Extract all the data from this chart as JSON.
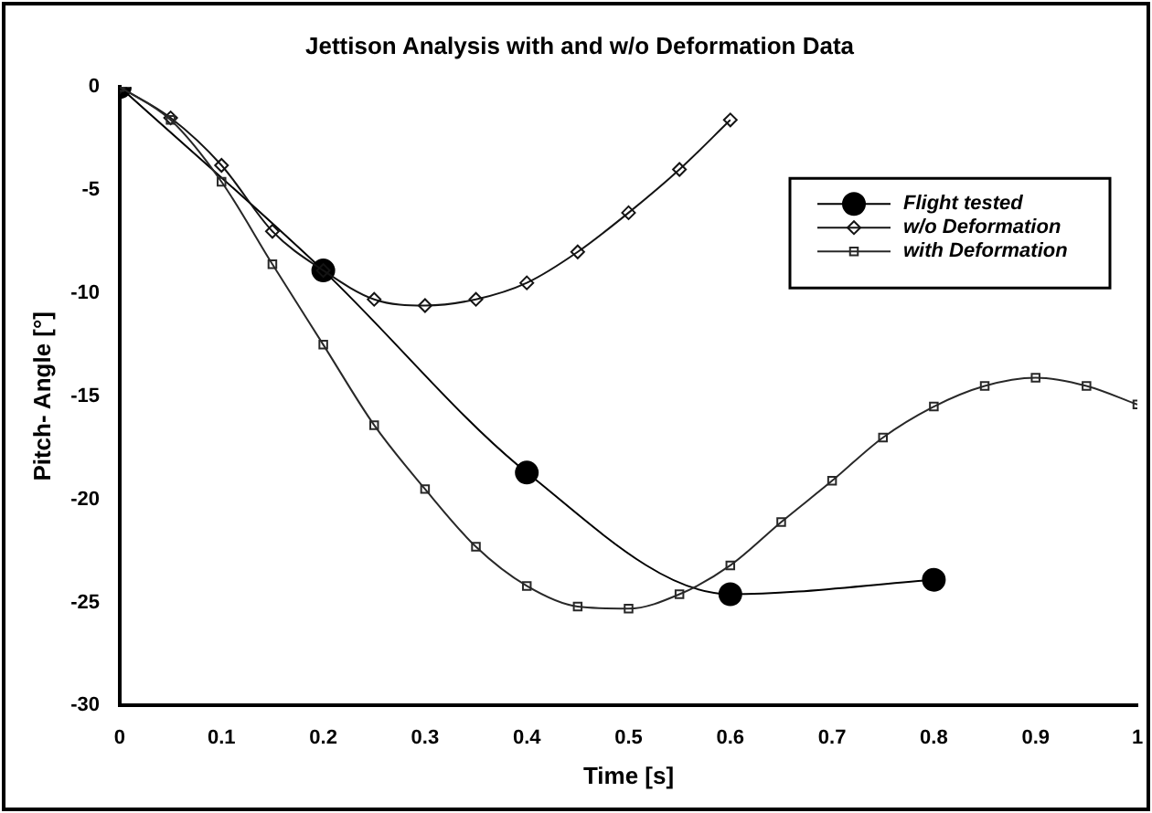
{
  "chart_data": {
    "type": "line",
    "title": "Jettison Analysis with and w/o Deformation Data",
    "xlabel": "Time [s]",
    "ylabel": "Pitch- Angle [°]",
    "xlim": [
      0,
      1
    ],
    "xticks": [
      0,
      0.1,
      0.2,
      0.3,
      0.4,
      0.5,
      0.6,
      0.7,
      0.8,
      0.9,
      1
    ],
    "ylim": [
      -30,
      0
    ],
    "yticks": [
      -30,
      -25,
      -20,
      -15,
      -10,
      -5,
      0
    ],
    "grid": false,
    "legend": "top right",
    "series": [
      {
        "name": "Flight tested",
        "color": "#000000",
        "marker": "circle",
        "x": [
          0,
          0.2,
          0.4,
          0.6,
          0.8
        ],
        "values": [
          0,
          -8.9,
          -18.7,
          -24.6,
          -23.9
        ]
      },
      {
        "name": "w/o Deformation",
        "color": "#141414",
        "marker": "diamond",
        "x": [
          0,
          0.05,
          0.1,
          0.15,
          0.2,
          0.25,
          0.3,
          0.35,
          0.4,
          0.45,
          0.5,
          0.55,
          0.6
        ],
        "values": [
          0,
          -1.5,
          -3.8,
          -7.0,
          -8.9,
          -10.3,
          -10.6,
          -10.3,
          -9.5,
          -8.0,
          -6.1,
          -4.0,
          -1.6
        ]
      },
      {
        "name": "with Deformation",
        "color": "#282828",
        "marker": "square",
        "x": [
          0,
          0.05,
          0.1,
          0.15,
          0.2,
          0.25,
          0.3,
          0.35,
          0.4,
          0.45,
          0.5,
          0.55,
          0.6,
          0.65,
          0.7,
          0.75,
          0.8,
          0.85,
          0.9,
          0.95,
          1
        ],
        "values": [
          0,
          -1.6,
          -4.6,
          -8.6,
          -12.5,
          -16.4,
          -19.5,
          -22.3,
          -24.2,
          -25.2,
          -25.3,
          -24.6,
          -23.2,
          -21.1,
          -19.1,
          -17.0,
          -15.5,
          -14.5,
          -14.1,
          -14.5,
          -15.4
        ]
      }
    ]
  }
}
